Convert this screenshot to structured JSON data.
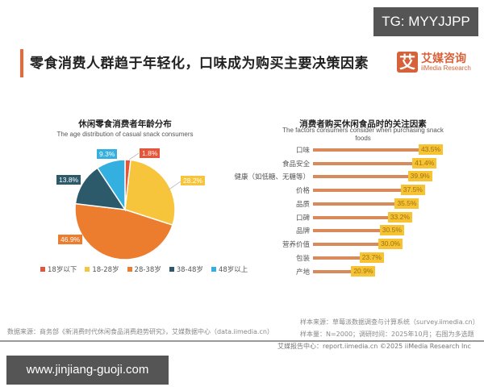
{
  "watermark_top": "TG: MYYJJPP",
  "watermark_bottom": "www.jinjiang-guoji.com",
  "header": {
    "title": "零食消费人群趋于年轻化，口味成为购买主要决策因素",
    "logo_mark": "艾",
    "logo_cn": "艾媒咨询",
    "logo_en": "iiMedia Research",
    "accent_color": "#e8683a"
  },
  "chart_data": [
    {
      "type": "pie",
      "title": "休闲零食消费者年龄分布",
      "subtitle": "The age distribution of casual snack consumers",
      "categories": [
        "18岁以下",
        "18-28岁",
        "28-38岁",
        "38-48岁",
        "48岁以上"
      ],
      "values": [
        1.8,
        28.2,
        46.9,
        13.8,
        9.3
      ],
      "labels": [
        "1.8%",
        "28.2%",
        "46.9%",
        "13.8%",
        "9.3%"
      ],
      "colors": [
        "#e4553a",
        "#f7c53b",
        "#ec7d2f",
        "#2d5a6b",
        "#33b0e0"
      ],
      "legend_position": "bottom",
      "start_angle": "top, clockwise"
    },
    {
      "type": "bar",
      "orientation": "horizontal",
      "title": "消费者购买休闲食品时的关注因素",
      "subtitle": "The factors consumers consider when purchasing snack foods",
      "categories": [
        "口味",
        "食品安全",
        "健康（如低糖、无糖等）",
        "价格",
        "品质",
        "口碑",
        "品牌",
        "营养价值",
        "包装",
        "产地"
      ],
      "values": [
        43.5,
        41.4,
        39.9,
        37.5,
        35.5,
        33.2,
        30.5,
        30.0,
        23.7,
        20.9
      ],
      "labels": [
        "43.5%",
        "41.4%",
        "39.9%",
        "37.5%",
        "35.5%",
        "33.2%",
        "30.5%",
        "30.0%",
        "23.7%",
        "20.9%"
      ],
      "bar_color": "#d98a5a",
      "label_bg_color": "#f5c334",
      "xlabel": "",
      "ylabel": "",
      "grid": false
    }
  ],
  "sources": {
    "left": "数据来源：商务部《新消费时代休闲食品消费趋势研究》，艾媒数据中心（data.iimedia.cn）",
    "right_line1": "样本来源：草莓派数据调查与计算系统（survey.iimedia.cn）",
    "right_line2": "样本量：N=2000；调研时间：2025年10月；右图为多选题",
    "footer": "艾媒报告中心：report.iimedia.cn    ©2025  iiMedia Research  Inc"
  }
}
